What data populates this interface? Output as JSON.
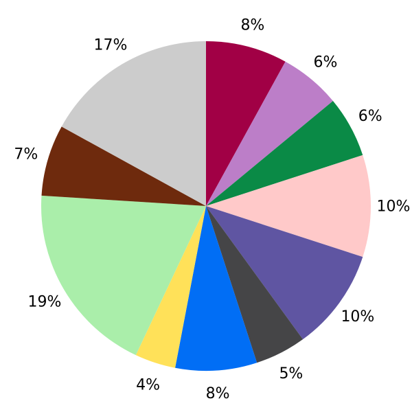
{
  "chart_data": {
    "type": "pie",
    "title": "",
    "start_angle": 90,
    "direction": "clockwise",
    "center": [
      300,
      300
    ],
    "radius": 240,
    "label_distance": 273,
    "label_color": "#000000",
    "background": "#FFFFFF",
    "legend": "none",
    "slices": [
      {
        "label": "8%",
        "value": 8,
        "color": "#A10045"
      },
      {
        "label": "6%",
        "value": 6,
        "color": "#BC7EC8"
      },
      {
        "label": "6%",
        "value": 6,
        "color": "#0A8A46"
      },
      {
        "label": "10%",
        "value": 10,
        "color": "#FFC9C9"
      },
      {
        "label": "10%",
        "value": 10,
        "color": "#5F55A2"
      },
      {
        "label": "5%",
        "value": 5,
        "color": "#454547"
      },
      {
        "label": "8%",
        "value": 8,
        "color": "#016EF5"
      },
      {
        "label": "4%",
        "value": 4,
        "color": "#FFE159"
      },
      {
        "label": "19%",
        "value": 19,
        "color": "#AAEEAA"
      },
      {
        "label": "7%",
        "value": 7,
        "color": "#6E2A0D"
      },
      {
        "label": "17%",
        "value": 17,
        "color": "#CCCCCC"
      }
    ]
  }
}
